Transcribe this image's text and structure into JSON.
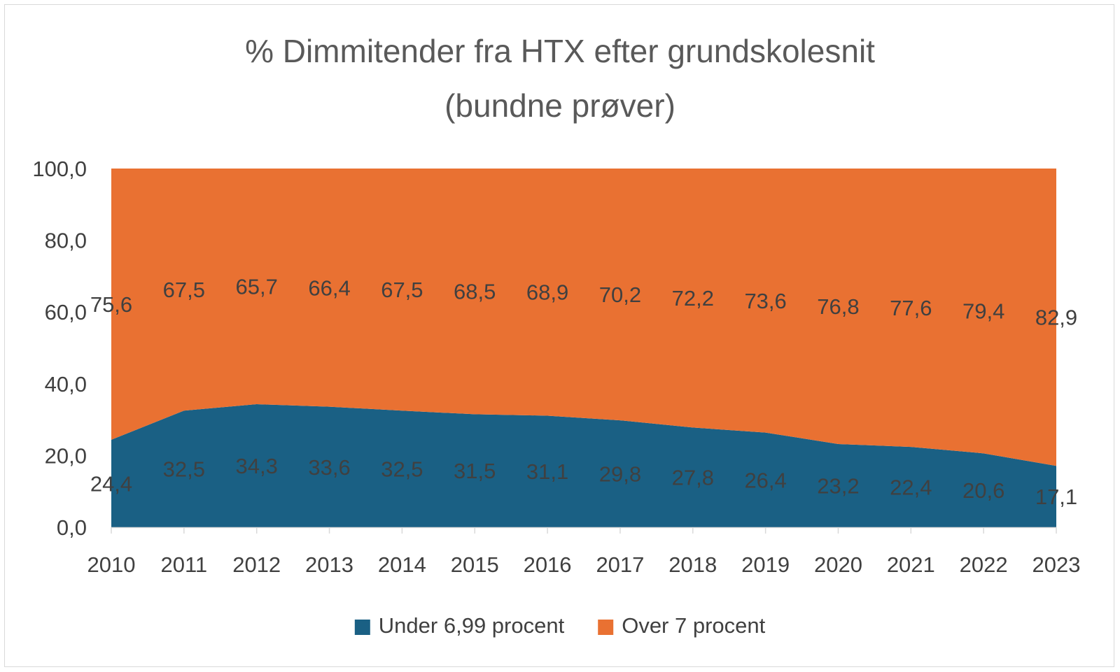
{
  "chart_data": {
    "type": "area",
    "stacked": true,
    "title_lines": [
      "% Dimmitender fra HTX efter grundskolesnit",
      "(bundne prøver)"
    ],
    "xlabel": "",
    "ylabel": "",
    "categories": [
      "2010",
      "2011",
      "2012",
      "2013",
      "2014",
      "2015",
      "2016",
      "2017",
      "2018",
      "2019",
      "2020",
      "2021",
      "2022",
      "2023"
    ],
    "ylim": [
      0,
      100
    ],
    "yticks": [
      "0,0",
      "20,0",
      "40,0",
      "60,0",
      "80,0",
      "100,0"
    ],
    "grid": false,
    "legend_position": "bottom",
    "series": [
      {
        "name": "Under 6,99 procent",
        "color": "#1a6084",
        "values": [
          24.4,
          32.5,
          34.3,
          33.6,
          32.5,
          31.5,
          31.1,
          29.8,
          27.8,
          26.4,
          23.2,
          22.4,
          20.6,
          17.1
        ],
        "labels": [
          "24,4",
          "32,5",
          "34,3",
          "33,6",
          "32,5",
          "31,5",
          "31,1",
          "29,8",
          "27,8",
          "26,4",
          "23,2",
          "22,4",
          "20,6",
          "17,1"
        ]
      },
      {
        "name": "Over 7 procent",
        "color": "#e97132",
        "values": [
          75.6,
          67.5,
          65.7,
          66.4,
          67.5,
          68.5,
          68.9,
          70.2,
          72.2,
          73.6,
          76.8,
          77.6,
          79.4,
          82.9
        ],
        "labels": [
          "75,6",
          "67,5",
          "65,7",
          "66,4",
          "67,5",
          "68,5",
          "68,9",
          "70,2",
          "72,2",
          "73,6",
          "76,8",
          "77,6",
          "79,4",
          "82,9"
        ]
      }
    ]
  }
}
